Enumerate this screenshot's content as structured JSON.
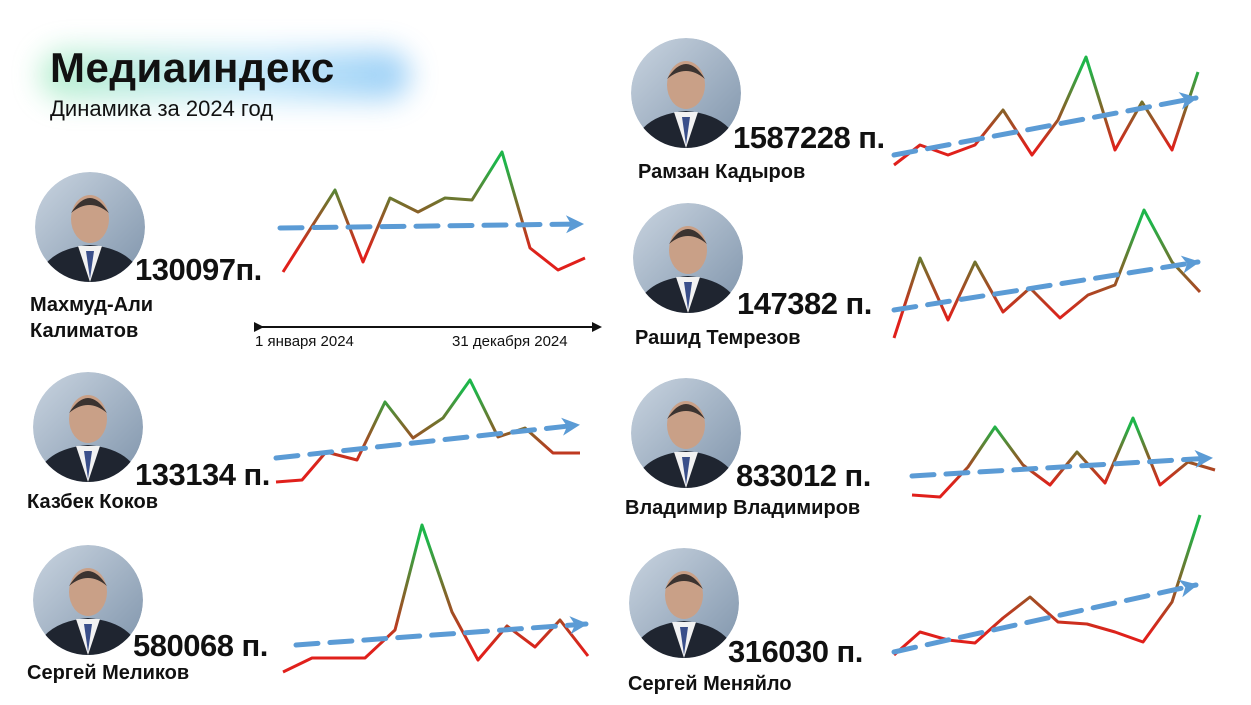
{
  "header": {
    "title": "Медиаиндекс",
    "subtitle": "Динамика за 2024 год"
  },
  "timeline": {
    "start": "1 января 2024",
    "end": "31 декабря 2024"
  },
  "people": [
    {
      "name": "Махмуд-Али Калиматов",
      "score": "130097п."
    },
    {
      "name": "Казбек Коков",
      "score": "133134 п."
    },
    {
      "name": "Сергей Меликов",
      "score": "580068 п."
    },
    {
      "name": "Рамзан Кадыров",
      "score": "1587228 п."
    },
    {
      "name": "Рашид Темрезов",
      "score": "147382 п."
    },
    {
      "name": "Владимир Владимиров",
      "score": "833012 п."
    },
    {
      "name": "Сергей Меняйло",
      "score": "316030 п."
    }
  ]
}
